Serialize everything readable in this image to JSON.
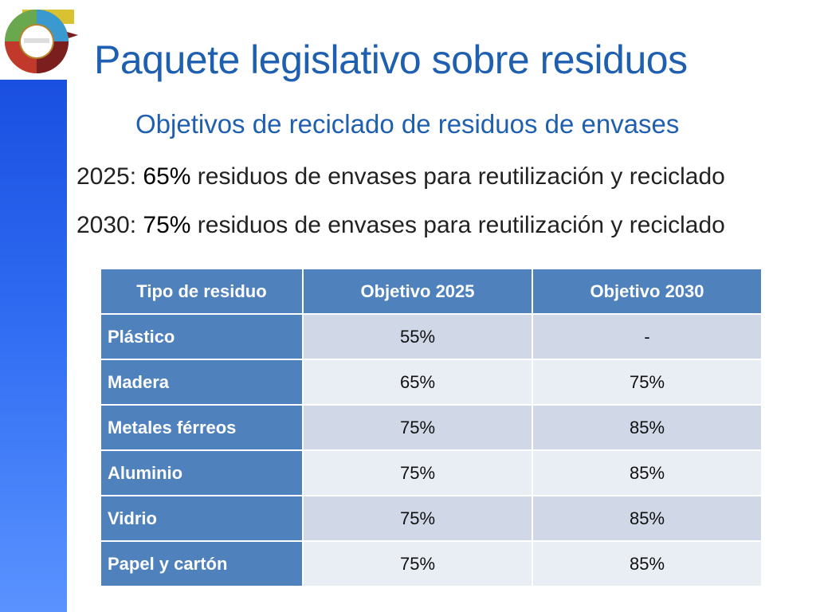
{
  "slide": {
    "title": "Paquete legislativo sobre residuos",
    "subtitle": "Objetivos de reciclado de residuos de envases"
  },
  "targets": [
    {
      "year": "2025",
      "sep": ": ",
      "pct": "65%",
      "text": " residuos de envases para reutilización y reciclado"
    },
    {
      "year": "2030",
      "sep": ": ",
      "pct": "75%",
      "text": " residuos de envases para reutilización y reciclado"
    }
  ],
  "table": {
    "headers": [
      "Tipo de residuo",
      "Objetivo 2025",
      "Objetivo 2030"
    ],
    "rows": [
      {
        "type": "Plástico",
        "obj2025": "55%",
        "obj2030": "-"
      },
      {
        "type": "Madera",
        "obj2025": "65%",
        "obj2030": "75%"
      },
      {
        "type": "Metales férreos",
        "obj2025": "75%",
        "obj2030": "85%"
      },
      {
        "type": "Aluminio",
        "obj2025": "75%",
        "obj2030": "85%"
      },
      {
        "type": "Vidrio",
        "obj2025": "75%",
        "obj2030": "85%"
      },
      {
        "type": "Papel y cartón",
        "obj2025": "75%",
        "obj2030": "85%"
      }
    ]
  },
  "colors": {
    "title": "#1f5fb0",
    "side_bar": "#2f6cf2",
    "table_header": "#4f81bd",
    "row_odd": "#d0d8e8",
    "row_even": "#e9edf4"
  }
}
